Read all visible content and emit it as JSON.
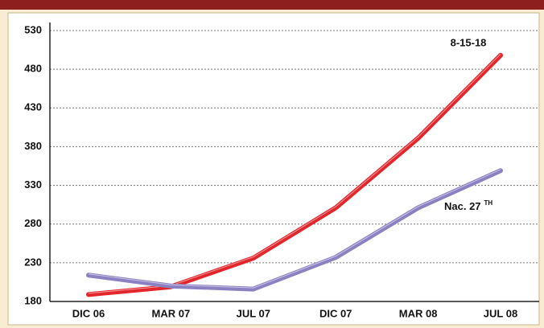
{
  "chart_data": {
    "type": "line",
    "categories": [
      "DIC 06",
      "MAR 07",
      "JUL 07",
      "DIC 07",
      "MAR 08",
      "JUL 08"
    ],
    "series": [
      {
        "name": "8-15-18",
        "color": "#e3262b",
        "values": [
          189,
          199,
          236,
          301,
          391,
          498
        ]
      },
      {
        "name": "Nac. 27",
        "name_sup": "TH",
        "color": "#8a80c2",
        "values": [
          214,
          200,
          196,
          237,
          301,
          349
        ]
      }
    ],
    "ylim": [
      180,
      530
    ],
    "yticks": [
      180,
      230,
      280,
      330,
      380,
      430,
      480,
      530
    ],
    "grid": true
  }
}
